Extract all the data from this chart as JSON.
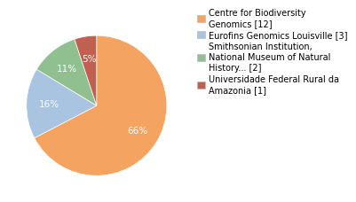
{
  "labels": [
    "Centre for Biodiversity\nGenomics [12]",
    "Eurofins Genomics Louisville [3]",
    "Smithsonian Institution,\nNational Museum of Natural\nHistory... [2]",
    "Universidade Federal Rural da\nAmazonia [1]"
  ],
  "values": [
    66,
    16,
    11,
    5
  ],
  "colors": [
    "#F4A460",
    "#A8C4E0",
    "#90C090",
    "#C06050"
  ],
  "pct_labels": [
    "66%",
    "16%",
    "11%",
    "5%"
  ],
  "background_color": "#ffffff",
  "startangle": 90,
  "pct_distance": 0.68,
  "legend_fontsize": 7.0
}
